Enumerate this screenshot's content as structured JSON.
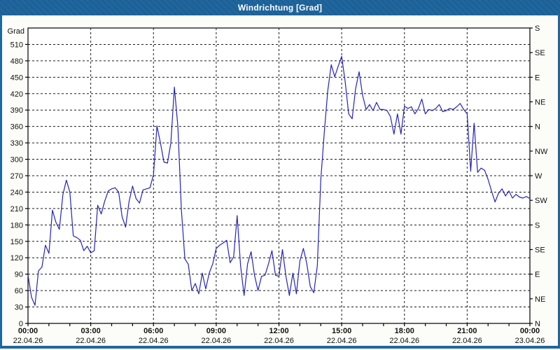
{
  "window": {
    "title": "Windrichtung [Grad]"
  },
  "colors": {
    "titlebar": "#1d6095",
    "title_text": "#ffffff",
    "window_border": "#20679e",
    "background": "#fcfcf8",
    "plot_background": "#ffffff",
    "grid": "#1a1a1a",
    "axis": "#000000",
    "line": "#2323bb",
    "label_text": "#111111"
  },
  "chart_data": {
    "type": "line",
    "title": "Windrichtung [Grad]",
    "y_left_axis": {
      "label": "Grad",
      "min": 0,
      "max": 540,
      "tick_step": 30,
      "tick_labels": [
        "0",
        "30",
        "60",
        "90",
        "120",
        "150",
        "180",
        "210",
        "240",
        "270",
        "300",
        "330",
        "360",
        "390",
        "420",
        "450",
        "480",
        "510"
      ]
    },
    "y_right_axis": {
      "tick_step": 45,
      "ticks": [
        {
          "value": 0,
          "label": "N"
        },
        {
          "value": 45,
          "label": "NE"
        },
        {
          "value": 90,
          "label": "E"
        },
        {
          "value": 135,
          "label": "SE"
        },
        {
          "value": 180,
          "label": "S"
        },
        {
          "value": 225,
          "label": "SW"
        },
        {
          "value": 270,
          "label": "W"
        },
        {
          "value": 315,
          "label": "NW"
        },
        {
          "value": 360,
          "label": "N"
        },
        {
          "value": 405,
          "label": "NE"
        },
        {
          "value": 450,
          "label": "E"
        },
        {
          "value": 495,
          "label": "SE"
        },
        {
          "value": 540,
          "label": "S"
        }
      ]
    },
    "x_axis": {
      "start_hour": 0,
      "end_hour": 24,
      "minor_tick_hours": 1,
      "major_tick_hours": 3,
      "major_ticks": [
        {
          "hour": 0,
          "time": "00:00",
          "date": "22.04.26"
        },
        {
          "hour": 3,
          "time": "03:00",
          "date": "22.04.26"
        },
        {
          "hour": 6,
          "time": "06:00",
          "date": "22.04.26"
        },
        {
          "hour": 9,
          "time": "09:00",
          "date": "22.04.26"
        },
        {
          "hour": 12,
          "time": "12:00",
          "date": "22.04.26"
        },
        {
          "hour": 15,
          "time": "15:00",
          "date": "22.04.26"
        },
        {
          "hour": 18,
          "time": "18:00",
          "date": "22.04.26"
        },
        {
          "hour": 21,
          "time": "21:00",
          "date": "22.04.26"
        },
        {
          "hour": 24,
          "time": "00:00",
          "date": "23.04.26"
        }
      ],
      "grid_at_major": true
    },
    "grid": "dashed",
    "legend": "none",
    "series": [
      {
        "name": "Windrichtung",
        "unit": "Grad",
        "sample_interval_minutes": 10,
        "start": "22.04.26 00:00",
        "values": [
          88,
          48,
          33,
          96,
          103,
          143,
          128,
          207,
          185,
          172,
          235,
          262,
          240,
          160,
          157,
          152,
          133,
          141,
          129,
          133,
          216,
          200,
          223,
          242,
          246,
          248,
          240,
          195,
          176,
          223,
          251,
          228,
          220,
          244,
          246,
          248,
          272,
          361,
          330,
          295,
          293,
          330,
          432,
          360,
          208,
          118,
          108,
          60,
          73,
          54,
          92,
          63,
          92,
          109,
          137,
          143,
          147,
          152,
          111,
          122,
          197,
          105,
          51,
          109,
          131,
          88,
          60,
          86,
          88,
          109,
          133,
          88,
          86,
          135,
          86,
          51,
          92,
          54,
          114,
          137,
          109,
          67,
          56,
          105,
          263,
          348,
          425,
          473,
          451,
          470,
          488,
          442,
          383,
          374,
          429,
          460,
          417,
          391,
          400,
          389,
          404,
          391,
          391,
          389,
          378,
          346,
          383,
          346,
          397,
          393,
          396,
          383,
          393,
          410,
          383,
          391,
          389,
          393,
          400,
          387,
          389,
          393,
          391,
          396,
          402,
          391,
          383,
          278,
          366,
          276,
          284,
          280,
          263,
          242,
          222,
          238,
          246,
          233,
          242,
          229,
          236,
          231,
          229,
          232,
          228
        ]
      }
    ]
  }
}
